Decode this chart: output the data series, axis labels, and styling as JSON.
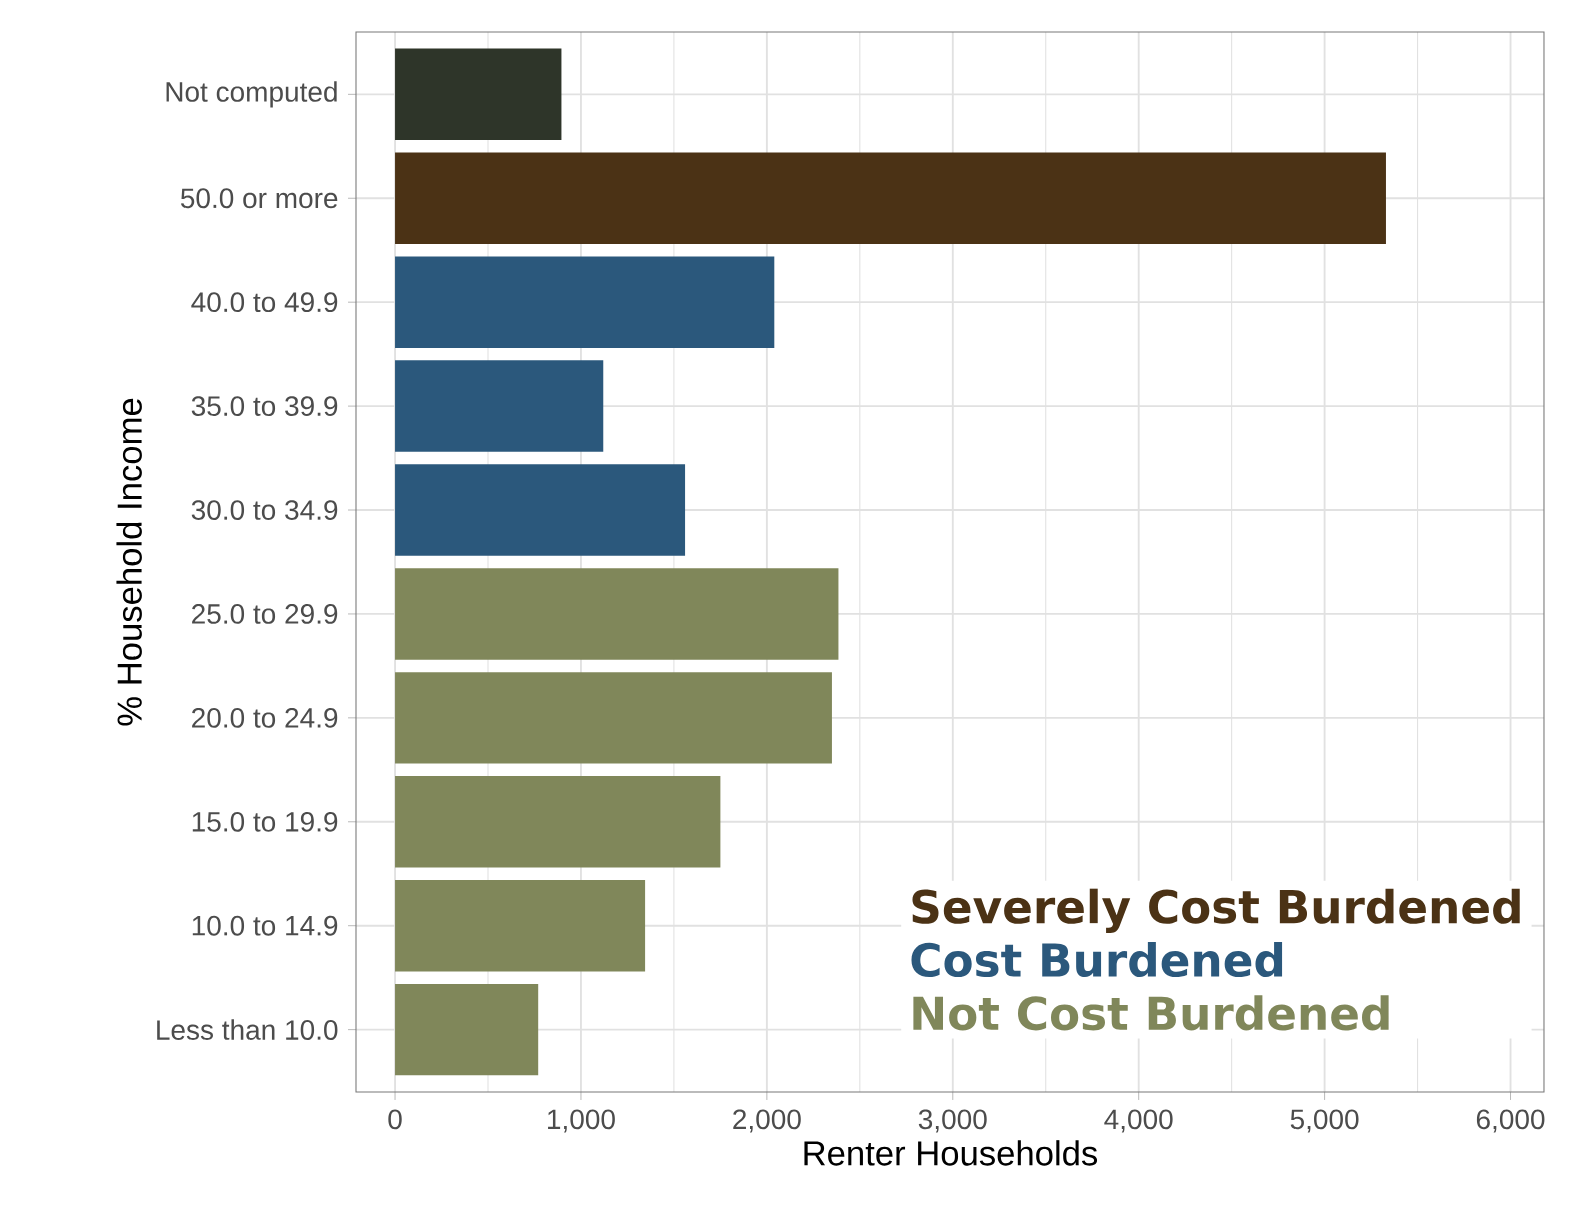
{
  "chart_data": {
    "type": "bar",
    "orientation": "horizontal",
    "xlabel": "Renter Households",
    "ylabel": "% Household Income",
    "categories": [
      "Not computed",
      "50.0 or more",
      "40.0 to 49.9",
      "35.0 to 39.9",
      "30.0 to 34.9",
      "25.0 to 29.9",
      "20.0 to 24.9",
      "15.0 to 19.9",
      "10.0 to 14.9",
      "Less than 10.0"
    ],
    "series": [
      {
        "color": "#2e3529",
        "values": [
          895,
          null,
          null,
          null,
          null,
          null,
          null,
          null,
          null,
          null
        ]
      },
      {
        "name": "Severely Cost Burdened",
        "color": "#4b3215",
        "values": [
          null,
          5330,
          null,
          null,
          null,
          null,
          null,
          null,
          null,
          null
        ]
      },
      {
        "name": "Cost Burdened",
        "color": "#2b587c",
        "values": [
          null,
          null,
          2040,
          1120,
          1560,
          null,
          null,
          null,
          null,
          null
        ]
      },
      {
        "name": "Not Cost Burdened",
        "color": "#80875a",
        "values": [
          null,
          null,
          null,
          null,
          null,
          2385,
          2350,
          1750,
          1345,
          770
        ]
      }
    ],
    "xlim": [
      -210,
      6180
    ],
    "xticks": [
      0,
      {
        "value": 1000,
        "label": "1,000"
      },
      {
        "value": 2000,
        "label": "2,000"
      },
      {
        "value": 3000,
        "label": "3,000"
      },
      {
        "value": 4000,
        "label": "4,000"
      },
      {
        "value": 5000,
        "label": "5,000"
      },
      {
        "value": 6000,
        "label": "6,000"
      }
    ],
    "grid": true,
    "legend": "bottom right"
  }
}
